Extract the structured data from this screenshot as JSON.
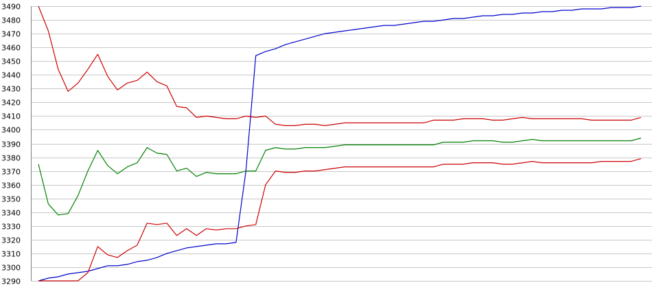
{
  "chart_data": {
    "type": "line",
    "title": "",
    "xlabel": "",
    "ylabel": "",
    "ylim": [
      3290,
      3490
    ],
    "y_ticks": [
      3490,
      3480,
      3470,
      3460,
      3450,
      3440,
      3430,
      3420,
      3410,
      3400,
      3390,
      3380,
      3370,
      3360,
      3350,
      3340,
      3330,
      3320,
      3310,
      3300,
      3290
    ],
    "grid": true,
    "x_ticks_shown": false,
    "legend": "none",
    "x": [
      0,
      1,
      2,
      3,
      4,
      5,
      6,
      7,
      8,
      9,
      10,
      11,
      12,
      13,
      14,
      15,
      16,
      17,
      18,
      19,
      20,
      21,
      22,
      23,
      24,
      25,
      26,
      27,
      28,
      29,
      30,
      31,
      32,
      33,
      34,
      35,
      36,
      37,
      38,
      39,
      40,
      41,
      42,
      43,
      44,
      45,
      46,
      47,
      48,
      49,
      50,
      51,
      52,
      53,
      54,
      55,
      56,
      57,
      58,
      59,
      60,
      61
    ],
    "series": [
      {
        "color": "#0000cc",
        "values": [
          3290,
          3292,
          3293,
          3295,
          3296,
          3297,
          3299,
          3301,
          3301,
          3302,
          3304,
          3305,
          3307,
          3310,
          3312,
          3314,
          3315,
          3316,
          3317,
          3317,
          3318,
          3370,
          3454,
          3457,
          3459,
          3462,
          3464,
          3466,
          3468,
          3470,
          3471,
          3472,
          3473,
          3474,
          3475,
          3476,
          3476,
          3477,
          3478,
          3479,
          3479,
          3480,
          3481,
          3481,
          3482,
          3483,
          3483,
          3484,
          3484,
          3485,
          3485,
          3486,
          3486,
          3487,
          3487,
          3488,
          3488,
          3488,
          3489,
          3489,
          3489,
          3490
        ]
      },
      {
        "color": "#cc0000",
        "values": [
          3490,
          3472,
          3444,
          3428,
          3434,
          3444,
          3455,
          3439,
          3429,
          3434,
          3436,
          3442,
          3435,
          3432,
          3417,
          3416,
          3409,
          3410,
          3409,
          3408,
          3408,
          3410,
          3409,
          3410,
          3404,
          3403,
          3403,
          3404,
          3404,
          3403,
          3404,
          3405,
          3405,
          3405,
          3405,
          3405,
          3405,
          3405,
          3405,
          3405,
          3407,
          3407,
          3407,
          3408,
          3408,
          3408,
          3407,
          3407,
          3408,
          3409,
          3408,
          3408,
          3408,
          3408,
          3408,
          3408,
          3407,
          3407,
          3407,
          3407,
          3407,
          3409
        ]
      },
      {
        "color": "#008000",
        "values": [
          3375,
          3346,
          3338,
          3339,
          3352,
          3370,
          3385,
          3374,
          3368,
          3373,
          3376,
          3387,
          3383,
          3382,
          3370,
          3372,
          3366,
          3369,
          3368,
          3368,
          3368,
          3370,
          3370,
          3385,
          3387,
          3386,
          3386,
          3387,
          3387,
          3387,
          3388,
          3389,
          3389,
          3389,
          3389,
          3389,
          3389,
          3389,
          3389,
          3389,
          3389,
          3391,
          3391,
          3391,
          3392,
          3392,
          3392,
          3391,
          3391,
          3392,
          3393,
          3392,
          3392,
          3392,
          3392,
          3392,
          3392,
          3392,
          3392,
          3392,
          3392,
          3394
        ]
      },
      {
        "color": "#cc0000",
        "values": [
          3290,
          3290,
          3290,
          3290,
          3290,
          3296,
          3315,
          3309,
          3307,
          3312,
          3316,
          3332,
          3331,
          3332,
          3323,
          3328,
          3323,
          3328,
          3327,
          3328,
          3328,
          3330,
          3331,
          3360,
          3370,
          3369,
          3369,
          3370,
          3370,
          3371,
          3372,
          3373,
          3373,
          3373,
          3373,
          3373,
          3373,
          3373,
          3373,
          3373,
          3373,
          3375,
          3375,
          3375,
          3376,
          3376,
          3376,
          3375,
          3375,
          3376,
          3377,
          3376,
          3376,
          3376,
          3376,
          3376,
          3376,
          3377,
          3377,
          3377,
          3377,
          3379
        ]
      }
    ]
  }
}
